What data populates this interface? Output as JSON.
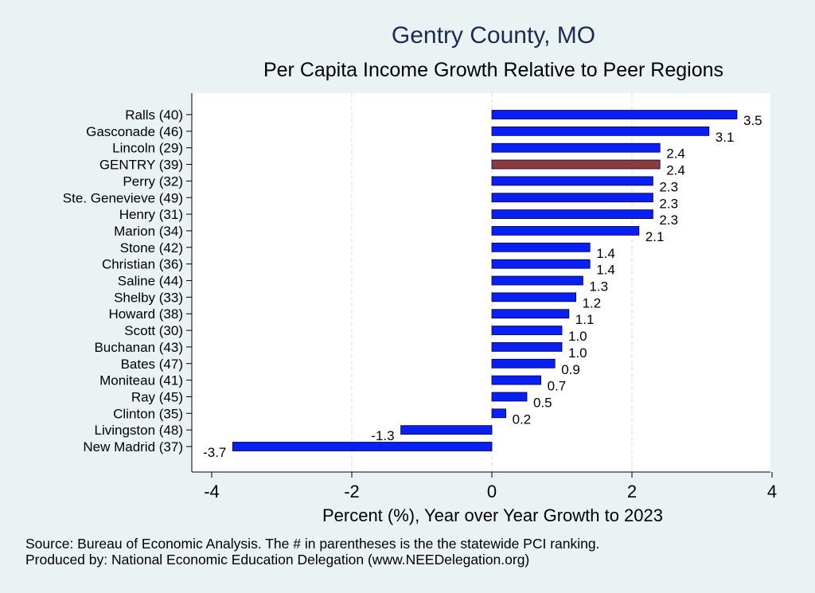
{
  "chart_data": {
    "type": "bar",
    "orientation": "horizontal",
    "title": "Gentry County, MO",
    "subtitle": "Per Capita Income Growth Relative to Peer Regions",
    "xlabel": "Percent (%), Year over Year Growth to 2023",
    "ylabel": "",
    "xlim": [
      -4,
      4
    ],
    "xticks": [
      -4,
      -2,
      0,
      2,
      4
    ],
    "grid": "vertical dashed",
    "colors": {
      "default": "#0a1ff2",
      "highlight": "#8c3b3f",
      "background": "#eaf2f3",
      "plot_bg": "#ffffff"
    },
    "categories": [
      "Ralls (40)",
      "Gasconade (46)",
      "Lincoln (29)",
      "GENTRY (39)",
      "Perry (32)",
      "Ste. Genevieve (49)",
      "Henry (31)",
      "Marion (34)",
      "Stone (42)",
      "Christian (36)",
      "Saline (44)",
      "Shelby (33)",
      "Howard (38)",
      "Scott (30)",
      "Buchanan (43)",
      "Bates (47)",
      "Moniteau (41)",
      "Ray (45)",
      "Clinton (35)",
      "Livingston (48)",
      "New Madrid (37)"
    ],
    "values": [
      3.5,
      3.1,
      2.4,
      2.4,
      2.3,
      2.3,
      2.3,
      2.1,
      1.4,
      1.4,
      1.3,
      1.2,
      1.1,
      1.0,
      1.0,
      0.9,
      0.7,
      0.5,
      0.2,
      -1.3,
      -3.7
    ],
    "value_labels": [
      "3.5",
      "3.1",
      "2.4",
      "2.4",
      "2.3",
      "2.3",
      "2.3",
      "2.1",
      "1.4",
      "1.4",
      "1.3",
      "1.2",
      "1.1",
      "1.0",
      "1.0",
      "0.9",
      "0.7",
      "0.5",
      "0.2",
      "-1.3",
      "-3.7"
    ],
    "highlight": "GENTRY (39)"
  },
  "notes": {
    "source": "Source: Bureau of Economic Analysis. The # in parentheses is the the statewide PCI ranking.",
    "produced_by": "Produced by: National Economic Education Delegation (www.NEEDelegation.org)"
  }
}
